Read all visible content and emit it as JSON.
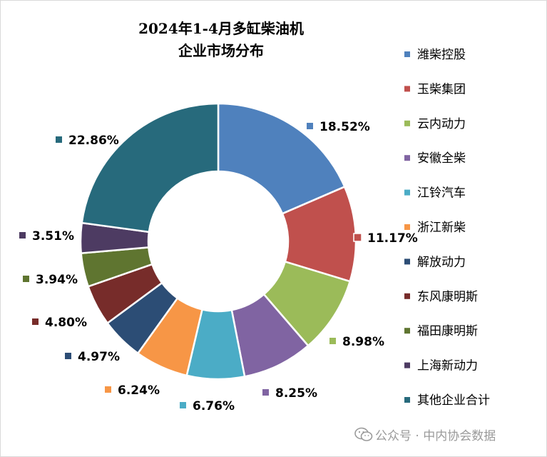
{
  "chart_data": {
    "type": "donut",
    "title_line1": "2024年1-4月多缸柴油机",
    "title_line2": "企业市场分布",
    "series": [
      {
        "name": "潍柴控股",
        "value": 18.52,
        "label": "18.52%",
        "color": "#4F81BD"
      },
      {
        "name": "玉柴集团",
        "value": 11.17,
        "label": "11.17%",
        "color": "#C0504D"
      },
      {
        "name": "云内动力",
        "value": 8.98,
        "label": "8.98%",
        "color": "#9BBB59"
      },
      {
        "name": "安徽全柴",
        "value": 8.25,
        "label": "8.25%",
        "color": "#8064A2"
      },
      {
        "name": "江铃汽车",
        "value": 6.76,
        "label": "6.76%",
        "color": "#4BACC6"
      },
      {
        "name": "浙江新柴",
        "value": 6.24,
        "label": "6.24%",
        "color": "#F79646"
      },
      {
        "name": "解放动力",
        "value": 4.97,
        "label": "4.97%",
        "color": "#2C4D75"
      },
      {
        "name": "东风康明斯",
        "value": 4.8,
        "label": "4.80%",
        "color": "#772C2A"
      },
      {
        "name": "福田康明斯",
        "value": 3.94,
        "label": "3.94%",
        "color": "#5F7530"
      },
      {
        "name": "上海新动力",
        "value": 3.51,
        "label": "3.51%",
        "color": "#4D3B62"
      },
      {
        "name": "其他企业合计",
        "value": 22.86,
        "label": "22.86%",
        "color": "#276A7C"
      }
    ],
    "legend_position": "right"
  },
  "watermark": {
    "text": "公众号 · 中内协会数据",
    "icon": "wechat-icon"
  }
}
